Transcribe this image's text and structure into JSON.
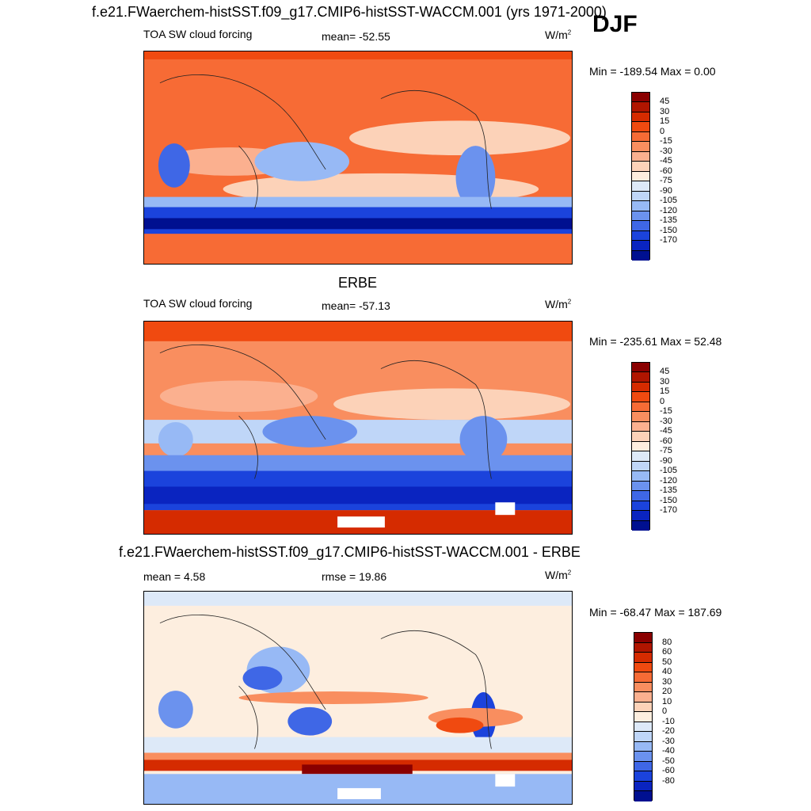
{
  "header": {
    "main_title": "f.e21.FWaerchem-histSST.f09_g17.CMIP6-histSST-WACCM.001 (yrs 1971-2000)",
    "season": "DJF"
  },
  "panels": [
    {
      "heading": "",
      "left_label": "TOA SW cloud forcing",
      "center_label": "mean= -52.55",
      "units_base": "W/m",
      "units_exp": "2",
      "minmax": "Min = -189.54 Max =   0.00",
      "colorbar": {
        "labels": [
          "45",
          "30",
          "15",
          "0",
          "-15",
          "-30",
          "-45",
          "-60",
          "-75",
          "-90",
          "-105",
          "-120",
          "-135",
          "-150",
          "-170"
        ],
        "colors": [
          "#8a0000",
          "#b01500",
          "#d52b00",
          "#f04a10",
          "#f76b35",
          "#f98e5f",
          "#fbb08f",
          "#fcd2b8",
          "#fdeedf",
          "#dde9f8",
          "#bfd6f8",
          "#97b9f5",
          "#6b92ee",
          "#3f67e6",
          "#1b43dc",
          "#0a24c0",
          "#001090"
        ]
      }
    },
    {
      "heading": "ERBE",
      "left_label": "TOA SW cloud forcing",
      "center_label": "mean= -57.13",
      "units_base": "W/m",
      "units_exp": "2",
      "minmax": "Min = -235.61 Max =  52.48",
      "colorbar": {
        "labels": [
          "45",
          "30",
          "15",
          "0",
          "-15",
          "-30",
          "-45",
          "-60",
          "-75",
          "-90",
          "-105",
          "-120",
          "-135",
          "-150",
          "-170"
        ],
        "colors": [
          "#8a0000",
          "#b01500",
          "#d52b00",
          "#f04a10",
          "#f76b35",
          "#f98e5f",
          "#fbb08f",
          "#fcd2b8",
          "#fdeedf",
          "#dde9f8",
          "#bfd6f8",
          "#97b9f5",
          "#6b92ee",
          "#3f67e6",
          "#1b43dc",
          "#0a24c0",
          "#001090"
        ]
      }
    },
    {
      "heading": "f.e21.FWaerchem-histSST.f09_g17.CMIP6-histSST-WACCM.001 - ERBE",
      "left_label": "mean =   4.58",
      "center_label": "rmse =  19.86",
      "units_base": "W/m",
      "units_exp": "2",
      "minmax": "Min = -68.47 Max = 187.69",
      "colorbar": {
        "labels": [
          "80",
          "60",
          "50",
          "40",
          "30",
          "20",
          "10",
          "0",
          "-10",
          "-20",
          "-30",
          "-40",
          "-50",
          "-60",
          "-80"
        ],
        "colors": [
          "#8a0000",
          "#b01500",
          "#d52b00",
          "#f04a10",
          "#f76b35",
          "#f98e5f",
          "#fbb08f",
          "#fcd2b8",
          "#fdeedf",
          "#dde9f8",
          "#bfd6f8",
          "#97b9f5",
          "#6b92ee",
          "#3f67e6",
          "#1b43dc",
          "#0a24c0",
          "#001090"
        ]
      }
    }
  ]
}
